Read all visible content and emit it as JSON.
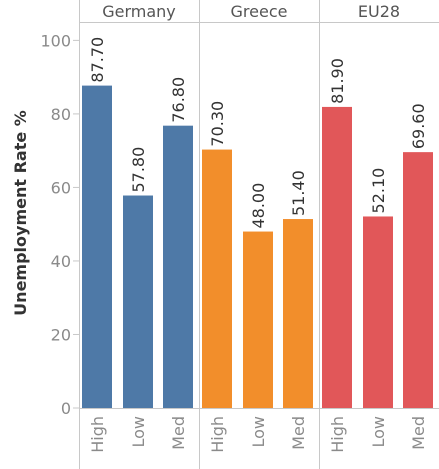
{
  "chart_data": {
    "type": "bar",
    "ylabel": "Unemployment Rate %",
    "ylim": [
      0,
      105
    ],
    "yticks": [
      0,
      20,
      40,
      60,
      80,
      100
    ],
    "grid": false,
    "panels": [
      {
        "name": "Germany",
        "color": "#4e79a7",
        "categories": [
          "High",
          "Low",
          "Med"
        ],
        "values": [
          87.7,
          57.8,
          76.8
        ],
        "labels": [
          "87.70",
          "57.80",
          "76.80"
        ]
      },
      {
        "name": "Greece",
        "color": "#f28e2b",
        "categories": [
          "High",
          "Low",
          "Med"
        ],
        "values": [
          70.3,
          48.0,
          51.4
        ],
        "labels": [
          "70.30",
          "48.00",
          "51.40"
        ]
      },
      {
        "name": "EU28",
        "color": "#e15759",
        "categories": [
          "High",
          "Low",
          "Med"
        ],
        "values": [
          81.9,
          52.1,
          69.6
        ],
        "labels": [
          "81.90",
          "52.10",
          "69.60"
        ]
      }
    ]
  }
}
